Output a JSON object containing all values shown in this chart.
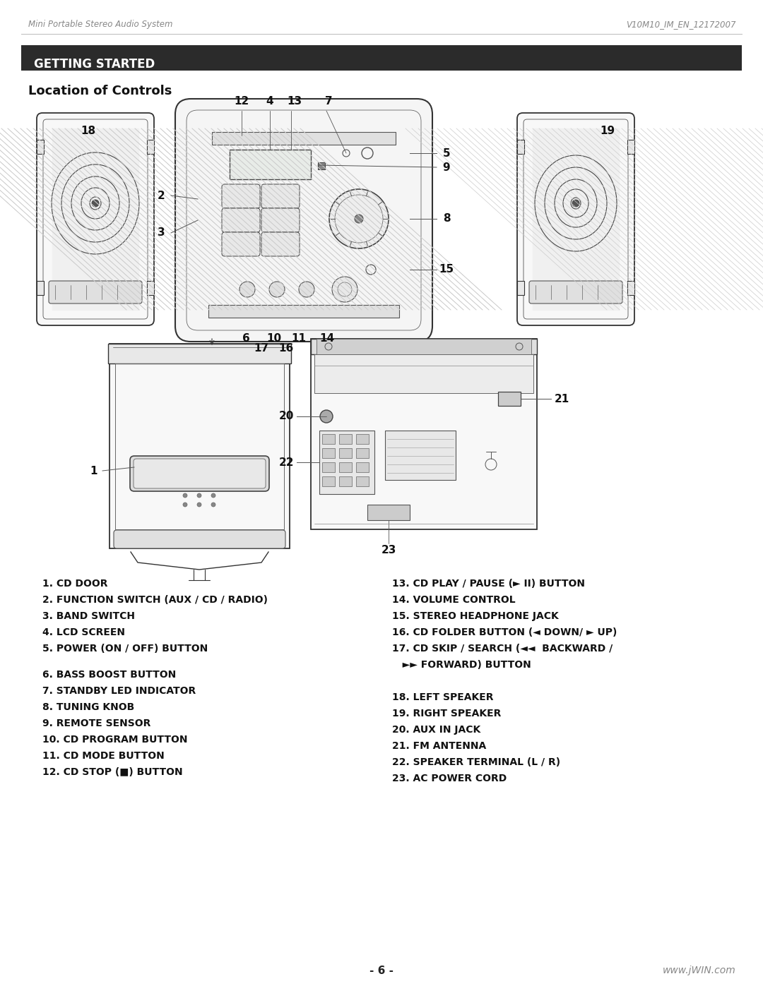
{
  "page_header_left": "Mini Portable Stereo Audio System",
  "page_header_right": "V10M10_IM_EN_12172007",
  "section_title": "GETTING STARTED",
  "subsection_title": "Location of Controls",
  "section_bg": "#2b2b2b",
  "section_text_color": "#ffffff",
  "page_number": "- 6 -",
  "website": "www.jWIN.com",
  "bg_color": "#ffffff",
  "text_color": "#111111",
  "header_color": "#888888",
  "left_col_items": [
    [
      "1. CD DOOR",
      false
    ],
    [
      "2. FUNCTION SWITCH (AUX / CD / RADIO)",
      false
    ],
    [
      "3. BAND SWITCH",
      false
    ],
    [
      "4. LCD SCREEN",
      false
    ],
    [
      "5. POWER (ON / OFF) BUTTON",
      false
    ],
    [
      "",
      false
    ],
    [
      "6. BASS BOOST BUTTON",
      false
    ],
    [
      "7. STANDBY LED INDICATOR",
      false
    ],
    [
      "8. TUNING KNOB",
      false
    ],
    [
      "9. REMOTE SENSOR",
      false
    ],
    [
      "10. CD PROGRAM BUTTON",
      false
    ],
    [
      "11. CD MODE BUTTON",
      false
    ],
    [
      "12. CD STOP (■) BUTTON",
      false
    ]
  ],
  "right_col_items": [
    [
      "13. CD PLAY / PAUSE (► II) BUTTON",
      0
    ],
    [
      "14. VOLUME CONTROL",
      1
    ],
    [
      "15. STEREO HEADPHONE JACK",
      2
    ],
    [
      "16. CD FOLDER BUTTON (◄ DOWN/ ► UP)",
      3
    ],
    [
      "17. CD SKIP / SEARCH (◄◄  BACKWARD /",
      4
    ],
    [
      "   ►► FORWARD) BUTTON",
      5
    ],
    [
      "18. LEFT SPEAKER",
      7
    ],
    [
      "19. RIGHT SPEAKER",
      8
    ],
    [
      "20. AUX IN JACK",
      9
    ],
    [
      "21. FM ANTENNA",
      10
    ],
    [
      "22. SPEAKER TERMINAL (L / R)",
      11
    ],
    [
      "23. AC POWER CORD",
      12
    ]
  ]
}
